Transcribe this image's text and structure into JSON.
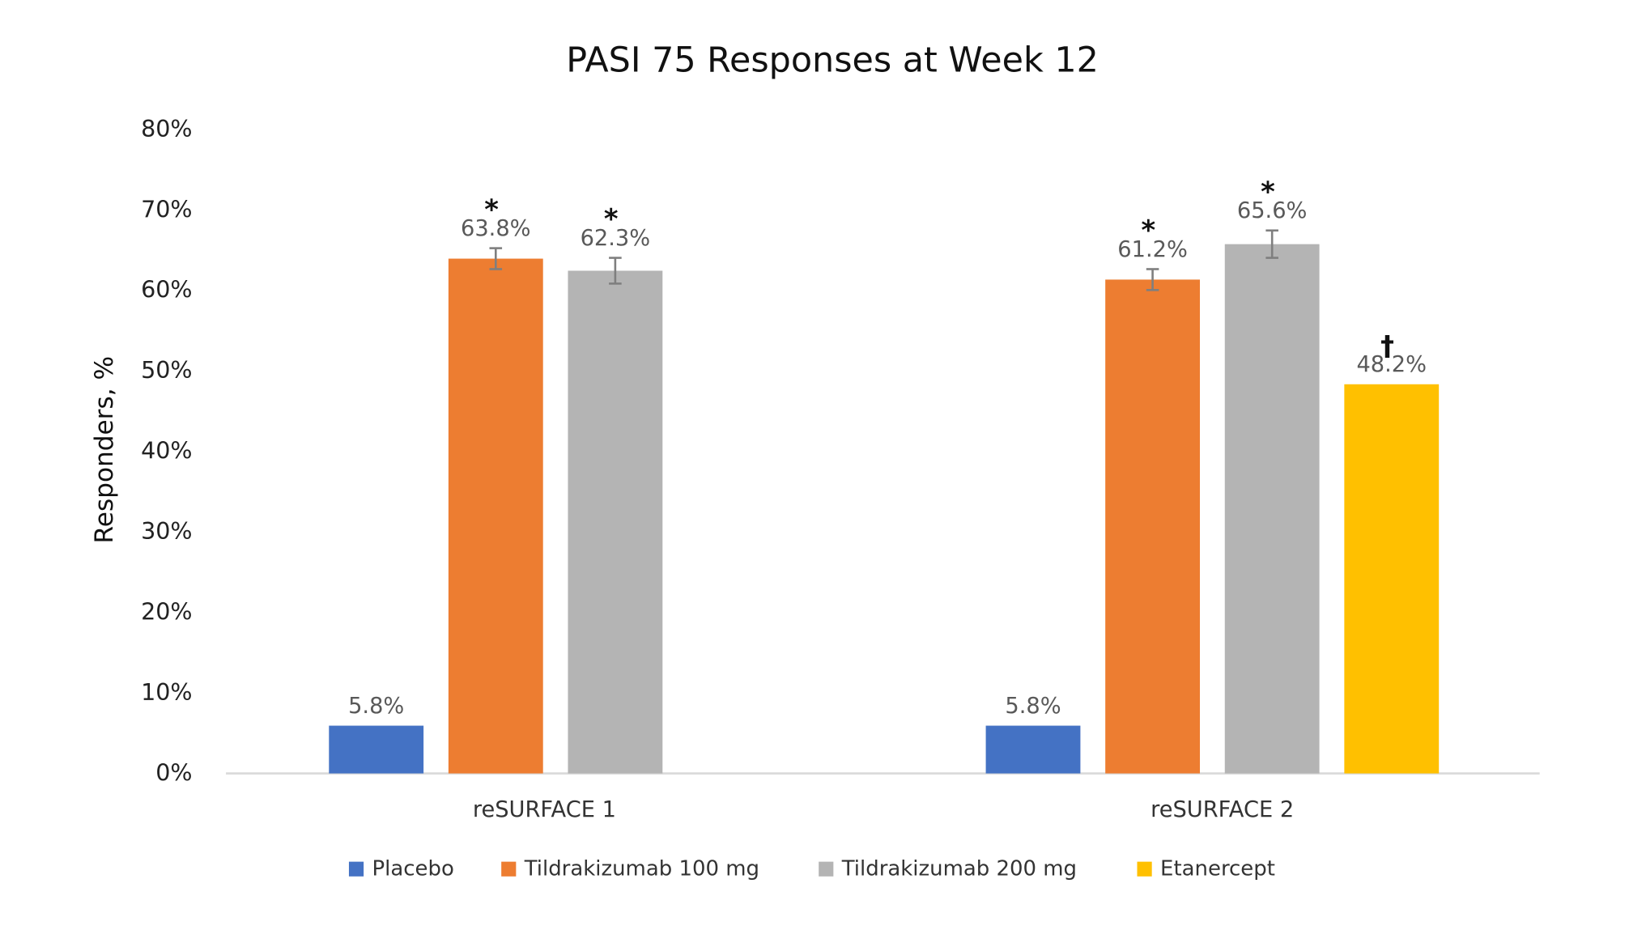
{
  "chart_data": {
    "type": "bar",
    "title": "PASI 75 Responses at Week 12",
    "xlabel": "",
    "ylabel": "Responders, %",
    "ylim": [
      0,
      80
    ],
    "yticks": [
      "0%",
      "10%",
      "20%",
      "30%",
      "40%",
      "50%",
      "60%",
      "70%",
      "80%"
    ],
    "grid": false,
    "legend_position": "bottom",
    "categories": [
      "reSURFACE 1",
      "reSURFACE 2"
    ],
    "series": [
      {
        "name": "Placebo",
        "color": "#4472c4",
        "values": [
          5.8,
          5.8
        ],
        "labels": [
          "5.8%",
          "5.8%"
        ],
        "marks": [
          "",
          ""
        ],
        "errors": [
          null,
          null
        ]
      },
      {
        "name": "Tildrakizumab 100 mg",
        "color": "#ed7d31",
        "values": [
          63.8,
          61.2
        ],
        "labels": [
          "63.8%",
          "61.2%"
        ],
        "marks": [
          "*",
          "*"
        ],
        "errors": [
          1.3,
          1.3
        ]
      },
      {
        "name": "Tildrakizumab 200 mg",
        "color": "#b4b4b4",
        "values": [
          62.3,
          65.6
        ],
        "labels": [
          "62.3%",
          "65.6%"
        ],
        "marks": [
          "*",
          "*"
        ],
        "errors": [
          1.6,
          1.7
        ]
      },
      {
        "name": "Etanercept",
        "color": "#ffc000",
        "values": [
          null,
          48.2
        ],
        "labels": [
          "",
          "48.2%"
        ],
        "marks": [
          "",
          "†"
        ],
        "errors": [
          null,
          null
        ]
      }
    ]
  }
}
